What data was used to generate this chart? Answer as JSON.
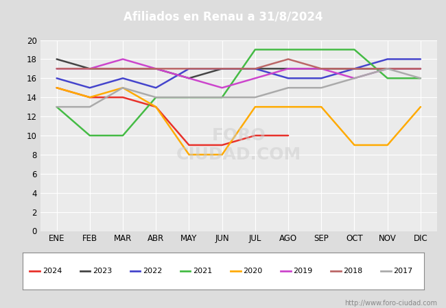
{
  "title": "Afiliados en Renau a 31/8/2024",
  "title_color": "#ffffff",
  "title_bg_color": "#3a6abf",
  "ylim": [
    0,
    20
  ],
  "yticks": [
    0,
    2,
    4,
    6,
    8,
    10,
    12,
    14,
    16,
    18,
    20
  ],
  "months": [
    "ENE",
    "FEB",
    "MAR",
    "ABR",
    "MAY",
    "JUN",
    "JUL",
    "AGO",
    "SEP",
    "OCT",
    "NOV",
    "DIC"
  ],
  "watermark": "http://www.foro-ciudad.com",
  "series": {
    "2024": {
      "color": "#e8312a",
      "data": [
        15,
        14,
        14,
        13,
        9,
        9,
        10,
        10,
        null,
        null,
        null,
        null
      ]
    },
    "2023": {
      "color": "#444444",
      "data": [
        18,
        17,
        17,
        17,
        16,
        17,
        17,
        17,
        17,
        17,
        17,
        17
      ]
    },
    "2022": {
      "color": "#4444cc",
      "data": [
        16,
        15,
        16,
        15,
        17,
        17,
        17,
        16,
        16,
        17,
        18,
        18
      ]
    },
    "2021": {
      "color": "#44bb44",
      "data": [
        13,
        10,
        10,
        14,
        14,
        14,
        19,
        19,
        19,
        19,
        16,
        16
      ]
    },
    "2020": {
      "color": "#ffaa00",
      "data": [
        15,
        14,
        15,
        13,
        8,
        8,
        13,
        13,
        13,
        9,
        9,
        13
      ]
    },
    "2019": {
      "color": "#cc44cc",
      "data": [
        17,
        17,
        18,
        17,
        16,
        15,
        16,
        17,
        17,
        16,
        17,
        17
      ]
    },
    "2018": {
      "color": "#bb6666",
      "data": [
        17,
        17,
        17,
        17,
        17,
        17,
        17,
        18,
        17,
        17,
        17,
        17
      ]
    },
    "2017": {
      "color": "#aaaaaa",
      "data": [
        13,
        13,
        15,
        14,
        14,
        14,
        14,
        15,
        15,
        16,
        17,
        16
      ]
    }
  },
  "background_color": "#dddddd",
  "plot_bg_color": "#ebebeb",
  "grid_color": "#ffffff",
  "legend_order": [
    "2024",
    "2023",
    "2022",
    "2021",
    "2020",
    "2019",
    "2018",
    "2017"
  ]
}
